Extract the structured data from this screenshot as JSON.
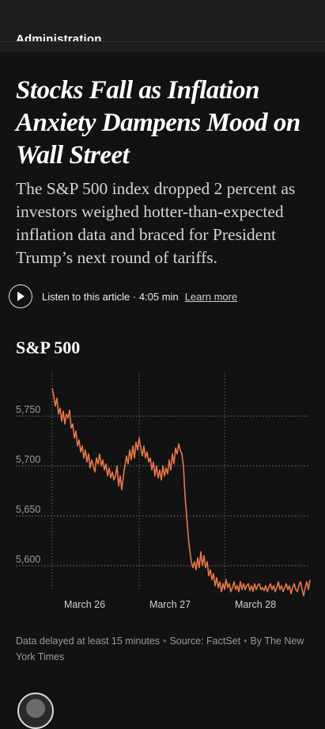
{
  "header": {
    "section_label": "Administration"
  },
  "article": {
    "headline": "Stocks Fall as Inflation Anxiety Dampens Mood on Wall Street",
    "summary": "The S&P 500 index dropped 2 percent as investors weighed hotter-than-expected inflation data and braced for President Trump’s next round of tariffs."
  },
  "audio": {
    "play_icon": "play-icon",
    "label": "Listen to this article · 4:05 min",
    "link": "Learn more"
  },
  "chart_title": "S&P 500",
  "chart_data": {
    "type": "line",
    "title": "S&P 500",
    "y_ticks": [
      "5,750",
      "5,700",
      "5,650",
      "5,600"
    ],
    "y_tick_values": [
      5750,
      5700,
      5650,
      5600
    ],
    "x_ticks": [
      "March 26",
      "March 27",
      "March 28"
    ],
    "ylim": [
      5565,
      5785
    ],
    "grid": true,
    "series": [
      {
        "color": "#e8774a",
        "x": [
          0,
          1,
          2,
          3,
          4,
          5,
          6,
          7,
          8,
          9,
          10,
          11,
          12,
          13,
          14,
          15,
          16,
          17,
          18,
          19,
          20,
          21,
          22,
          23,
          24,
          25,
          26,
          27,
          28,
          29,
          30,
          31,
          32,
          33,
          34,
          35,
          36,
          37,
          38,
          39,
          40,
          41,
          42,
          43,
          44,
          45,
          46,
          47,
          48,
          49,
          50,
          51,
          52,
          53,
          54,
          55,
          56,
          57,
          58,
          59,
          60,
          61,
          62,
          63,
          64,
          65,
          66,
          67,
          68,
          69,
          70,
          71,
          72,
          73,
          74,
          75,
          76,
          77,
          78,
          79,
          80,
          81,
          82,
          83,
          84,
          85,
          86,
          87,
          88,
          89,
          90,
          91,
          92,
          93,
          94,
          95,
          96,
          97,
          98,
          99,
          100,
          101,
          102,
          103,
          104,
          105,
          106,
          107,
          108,
          109,
          110,
          111,
          112,
          113,
          114,
          115,
          116,
          117,
          118,
          119,
          120,
          121,
          122,
          123,
          124,
          125,
          126,
          127,
          128,
          129,
          130,
          131,
          132,
          133,
          134,
          135,
          136,
          137,
          138,
          139,
          140,
          141,
          142,
          143,
          144,
          145,
          146,
          147,
          148,
          149,
          150,
          151,
          152,
          153,
          154,
          155,
          156,
          157,
          158,
          159,
          160,
          161,
          162,
          163
        ],
        "y": [
          5778,
          5770,
          5760,
          5768,
          5752,
          5758,
          5745,
          5755,
          5742,
          5752,
          5748,
          5756,
          5738,
          5742,
          5728,
          5735,
          5720,
          5726,
          5714,
          5720,
          5708,
          5716,
          5704,
          5712,
          5698,
          5706,
          5700,
          5694,
          5708,
          5702,
          5712,
          5700,
          5706,
          5696,
          5702,
          5690,
          5698,
          5688,
          5694,
          5686,
          5690,
          5700,
          5680,
          5690,
          5676,
          5690,
          5700,
          5710,
          5702,
          5716,
          5706,
          5720,
          5708,
          5724,
          5716,
          5728,
          5718,
          5710,
          5720,
          5708,
          5714,
          5704,
          5708,
          5696,
          5704,
          5690,
          5700,
          5688,
          5696,
          5686,
          5700,
          5690,
          5698,
          5692,
          5706,
          5696,
          5712,
          5702,
          5718,
          5712,
          5722,
          5716,
          5712,
          5700,
          5670,
          5650,
          5630,
          5615,
          5604,
          5598,
          5604,
          5596,
          5608,
          5598,
          5614,
          5600,
          5610,
          5598,
          5604,
          5590,
          5596,
          5586,
          5592,
          5580,
          5588,
          5578,
          5584,
          5574,
          5582,
          5576,
          5586,
          5578,
          5582,
          5574,
          5578,
          5584,
          5576,
          5580,
          5574,
          5584,
          5576,
          5582,
          5576,
          5580,
          5582,
          5575,
          5580,
          5574,
          5582,
          5576,
          5580,
          5582,
          5576,
          5578,
          5575,
          5580,
          5574,
          5578,
          5582,
          5576,
          5580,
          5574,
          5578,
          5584,
          5576,
          5580,
          5574,
          5578,
          5582,
          5576,
          5580,
          5572,
          5578,
          5582,
          5576,
          5574,
          5580,
          5584,
          5576,
          5570,
          5578,
          5584,
          5576,
          5586
        ]
      }
    ]
  },
  "source": {
    "delay": "Data delayed at least 15 minutes",
    "source": "Source: FactSet",
    "byline": "By The New York Times"
  },
  "avatar_icon": "avatar-icon"
}
